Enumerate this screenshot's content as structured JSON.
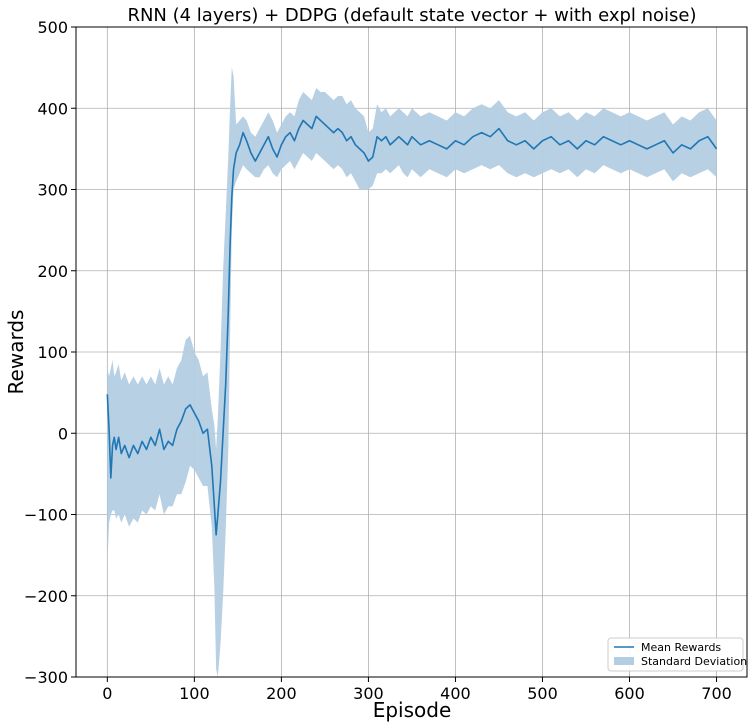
{
  "chart_data": {
    "type": "line",
    "title": "RNN (4 layers) + DDPG (default state vector + with expl noise)",
    "xlabel": "Episode",
    "ylabel": "Rewards",
    "xlim": [
      -36,
      735
    ],
    "ylim": [
      -300,
      500
    ],
    "x_ticks": [
      0,
      100,
      200,
      300,
      400,
      500,
      600,
      700
    ],
    "y_ticks": [
      -300,
      -200,
      -100,
      0,
      100,
      200,
      300,
      400,
      500
    ],
    "grid": true,
    "legend_position": "bottom-right",
    "colors": {
      "line": "#1f77b4",
      "band": "#b3cde3"
    },
    "series": [
      {
        "name": "Mean Rewards",
        "x": [
          0,
          2,
          4,
          6,
          8,
          10,
          13,
          16,
          20,
          25,
          30,
          35,
          40,
          45,
          50,
          55,
          60,
          65,
          70,
          75,
          80,
          85,
          90,
          95,
          100,
          105,
          110,
          115,
          120,
          123,
          125,
          127,
          130,
          133,
          136,
          139,
          141,
          143,
          145,
          148,
          152,
          156,
          160,
          165,
          170,
          175,
          180,
          185,
          190,
          195,
          200,
          205,
          210,
          215,
          220,
          225,
          230,
          235,
          240,
          245,
          250,
          255,
          260,
          265,
          270,
          275,
          280,
          285,
          290,
          295,
          300,
          305,
          310,
          315,
          320,
          325,
          330,
          335,
          340,
          345,
          350,
          360,
          370,
          380,
          390,
          400,
          410,
          420,
          430,
          440,
          450,
          460,
          470,
          480,
          490,
          500,
          510,
          520,
          530,
          540,
          550,
          560,
          570,
          580,
          590,
          600,
          610,
          620,
          630,
          640,
          650,
          660,
          670,
          680,
          690,
          700
        ],
        "y": [
          48,
          5,
          -55,
          -15,
          -5,
          -20,
          -5,
          -25,
          -15,
          -30,
          -15,
          -25,
          -10,
          -20,
          -5,
          -15,
          5,
          -20,
          -10,
          -15,
          5,
          15,
          30,
          35,
          25,
          15,
          0,
          5,
          -40,
          -90,
          -125,
          -100,
          -60,
          0,
          60,
          150,
          230,
          290,
          325,
          345,
          355,
          370,
          360,
          345,
          335,
          345,
          355,
          365,
          350,
          340,
          355,
          365,
          370,
          360,
          375,
          385,
          380,
          375,
          390,
          385,
          380,
          375,
          370,
          375,
          370,
          360,
          365,
          355,
          350,
          345,
          335,
          340,
          365,
          360,
          365,
          355,
          360,
          365,
          360,
          355,
          365,
          355,
          360,
          355,
          350,
          360,
          355,
          365,
          370,
          365,
          375,
          360,
          355,
          360,
          350,
          360,
          365,
          355,
          360,
          350,
          360,
          355,
          365,
          360,
          355,
          360,
          355,
          350,
          355,
          360,
          345,
          355,
          350,
          360,
          365,
          350
        ],
        "std_band": {
          "name": "Standard Deviation",
          "lower": [
            -160,
            -110,
            -100,
            -95,
            -95,
            -105,
            -100,
            -110,
            -100,
            -115,
            -105,
            -110,
            -95,
            -100,
            -90,
            -95,
            -75,
            -100,
            -90,
            -90,
            -75,
            -75,
            -60,
            -40,
            -45,
            -55,
            -65,
            -65,
            -115,
            -190,
            -290,
            -300,
            -260,
            -200,
            -120,
            -20,
            120,
            250,
            300,
            310,
            320,
            330,
            325,
            320,
            315,
            315,
            325,
            330,
            320,
            315,
            325,
            330,
            335,
            325,
            335,
            345,
            340,
            335,
            345,
            340,
            335,
            330,
            325,
            330,
            325,
            315,
            320,
            310,
            300,
            300,
            300,
            305,
            320,
            320,
            325,
            320,
            325,
            330,
            320,
            315,
            325,
            315,
            325,
            320,
            315,
            325,
            320,
            325,
            330,
            325,
            330,
            320,
            315,
            320,
            315,
            320,
            325,
            320,
            325,
            315,
            325,
            320,
            330,
            325,
            320,
            325,
            320,
            315,
            320,
            325,
            310,
            320,
            315,
            320,
            325,
            315
          ],
          "upper": [
            80,
            70,
            80,
            90,
            70,
            75,
            85,
            65,
            75,
            60,
            70,
            60,
            70,
            60,
            70,
            60,
            80,
            60,
            70,
            60,
            80,
            90,
            115,
            120,
            100,
            90,
            70,
            75,
            30,
            10,
            -20,
            20,
            100,
            200,
            270,
            340,
            400,
            450,
            440,
            380,
            385,
            390,
            385,
            370,
            365,
            375,
            385,
            395,
            385,
            370,
            380,
            390,
            395,
            390,
            410,
            420,
            415,
            410,
            425,
            420,
            420,
            415,
            410,
            415,
            415,
            405,
            410,
            400,
            395,
            390,
            370,
            375,
            405,
            395,
            400,
            390,
            395,
            400,
            395,
            390,
            400,
            390,
            395,
            390,
            385,
            395,
            390,
            400,
            405,
            400,
            410,
            395,
            390,
            395,
            385,
            395,
            400,
            390,
            395,
            385,
            395,
            390,
            400,
            395,
            390,
            395,
            390,
            385,
            390,
            395,
            380,
            390,
            385,
            395,
            400,
            385
          ]
        }
      }
    ]
  }
}
